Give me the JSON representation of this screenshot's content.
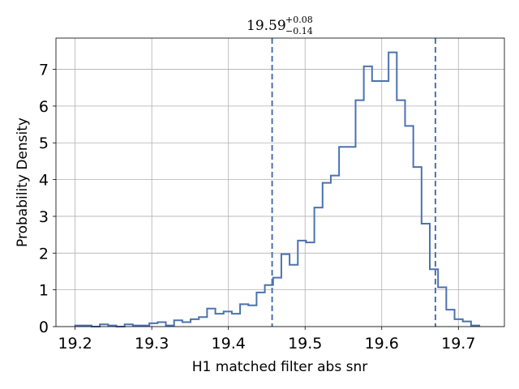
{
  "chart_data": {
    "type": "histogram",
    "title": {
      "median": "19.59",
      "upper": "+0.08",
      "lower": "−0.14"
    },
    "xlabel": "H1 matched filter abs snr",
    "ylabel": "Probability Density",
    "xlim": [
      19.175,
      19.76
    ],
    "ylim": [
      0,
      7.85
    ],
    "xticks": [
      19.2,
      19.3,
      19.4,
      19.5,
      19.6,
      19.7
    ],
    "xtick_labels": [
      "19.2",
      "19.3",
      "19.4",
      "19.5",
      "19.6",
      "19.7"
    ],
    "yticks": [
      0,
      1,
      2,
      3,
      4,
      5,
      6,
      7
    ],
    "ytick_labels": [
      "0",
      "1",
      "2",
      "3",
      "4",
      "5",
      "6",
      "7"
    ],
    "grid": true,
    "histtype": "step",
    "color": "#4c72b0",
    "bins_start": 19.2,
    "bin_width": 0.01076,
    "densities": [
      0.03,
      0.03,
      0.0,
      0.06,
      0.03,
      0.0,
      0.06,
      0.03,
      0.03,
      0.09,
      0.12,
      0.03,
      0.17,
      0.12,
      0.2,
      0.26,
      0.49,
      0.35,
      0.41,
      0.35,
      0.61,
      0.58,
      0.93,
      1.13,
      1.33,
      1.97,
      1.68,
      2.34,
      2.29,
      3.24,
      3.91,
      4.11,
      4.89,
      4.89,
      6.16,
      7.08,
      6.68,
      6.68,
      7.46,
      6.16,
      5.46,
      4.34,
      2.8,
      1.56,
      1.07,
      0.46,
      0.2,
      0.14,
      0.03
    ],
    "reference_lines": [
      19.457,
      19.67
    ]
  }
}
